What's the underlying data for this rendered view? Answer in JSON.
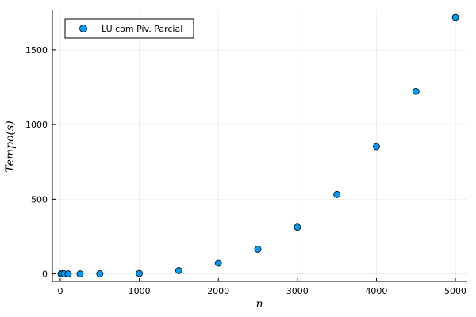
{
  "chart_data": {
    "type": "scatter",
    "xlabel": "n",
    "ylabel": "Tempo(s)",
    "xlim": [
      -100,
      5150
    ],
    "ylim": [
      -50,
      1770
    ],
    "xticks": [
      0,
      1000,
      2000,
      3000,
      4000,
      5000
    ],
    "yticks": [
      0,
      500,
      1000,
      1500
    ],
    "grid": true,
    "legend_position": "top-left",
    "series": [
      {
        "name": "LU com Piv. Parcial",
        "color": "#009AFA",
        "x": [
          10,
          25,
          50,
          100,
          250,
          500,
          1000,
          1500,
          2000,
          2500,
          3000,
          3500,
          4000,
          4500,
          5000
        ],
        "y": [
          0,
          0,
          0,
          0,
          0.1,
          1,
          3,
          22,
          72,
          165,
          313,
          532,
          852,
          1222,
          1717
        ]
      }
    ]
  }
}
